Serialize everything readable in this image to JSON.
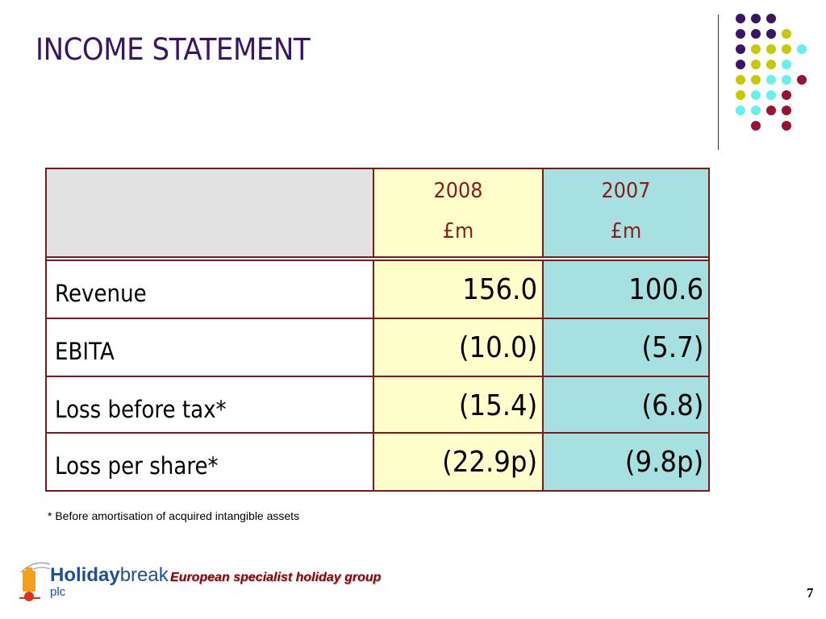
{
  "slide": {
    "title": "INCOME STATEMENT",
    "page_number": "7"
  },
  "colors": {
    "purple": "#3b1466",
    "lime": "#c8c800",
    "cyan": "#66f0f0",
    "maroon": "#991133",
    "table_border": "#7a1a1a",
    "col_2008_bg": "#ffffcc",
    "col_2007_bg": "#a6e0e0",
    "header_blank_bg": "#e2e2e2"
  },
  "table": {
    "columns": [
      {
        "year": "2008",
        "unit": "£m"
      },
      {
        "year": "2007",
        "unit": "£m"
      }
    ],
    "rows": [
      {
        "label": "Revenue",
        "v2008": "156.0",
        "v2007": "100.6"
      },
      {
        "label": "EBITA",
        "v2008": "(10.0)",
        "v2007": "(5.7)"
      },
      {
        "label": "Loss before tax*",
        "v2008": "(15.4)",
        "v2007": "(6.8)"
      },
      {
        "label": "Loss per share*",
        "v2008": "(22.9p)",
        "v2007": "(9.8p)"
      }
    ]
  },
  "footnote": "* Before amortisation of acquired intangible assets",
  "logo": {
    "holiday": "Holiday",
    "break": "break",
    "plc": "plc"
  },
  "tagline": "European specialist holiday group"
}
